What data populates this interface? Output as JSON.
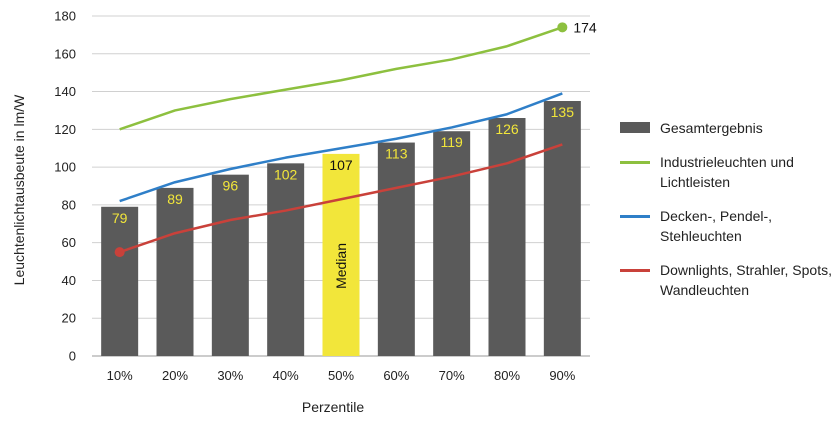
{
  "chart_data": {
    "type": "bar",
    "xlabel": "Perzentile",
    "ylabel": "Leuchtenlichtausbeute in lm/W",
    "ylim": [
      0,
      180
    ],
    "yticks": [
      0,
      20,
      40,
      60,
      80,
      100,
      120,
      140,
      160,
      180
    ],
    "grid": "horizontal",
    "legend_position": "right",
    "categories": [
      "10%",
      "20%",
      "30%",
      "40%",
      "50%",
      "60%",
      "70%",
      "80%",
      "90%"
    ],
    "highlight": {
      "index": 4,
      "label": "Median"
    },
    "series": [
      {
        "name": "Gesamtergebnis",
        "kind": "bar",
        "color": "#5a5a5a",
        "highlight_color": "#f2e63a",
        "values": [
          79,
          89,
          96,
          102,
          107,
          113,
          119,
          126,
          135
        ],
        "labels": [
          "79",
          "89",
          "96",
          "102",
          "107",
          "113",
          "119",
          "126",
          "135"
        ]
      },
      {
        "name": "Industrieleuchten und Lichtleisten",
        "kind": "line",
        "color": "#8dc03f",
        "values": [
          120,
          130,
          136,
          141,
          146,
          152,
          157,
          164,
          174
        ],
        "end_label": "174"
      },
      {
        "name": "Decken-, Pendel-, Stehleuchten",
        "kind": "line",
        "color": "#2f7fc8",
        "values": [
          82,
          92,
          99,
          105,
          110,
          115,
          121,
          128,
          139
        ]
      },
      {
        "name": "Downlights, Strahler, Spots, Wandleuchten",
        "kind": "line",
        "color": "#c9413a",
        "values": [
          55,
          65,
          72,
          77,
          83,
          89,
          95,
          102,
          112
        ],
        "start_label": "55"
      }
    ]
  }
}
